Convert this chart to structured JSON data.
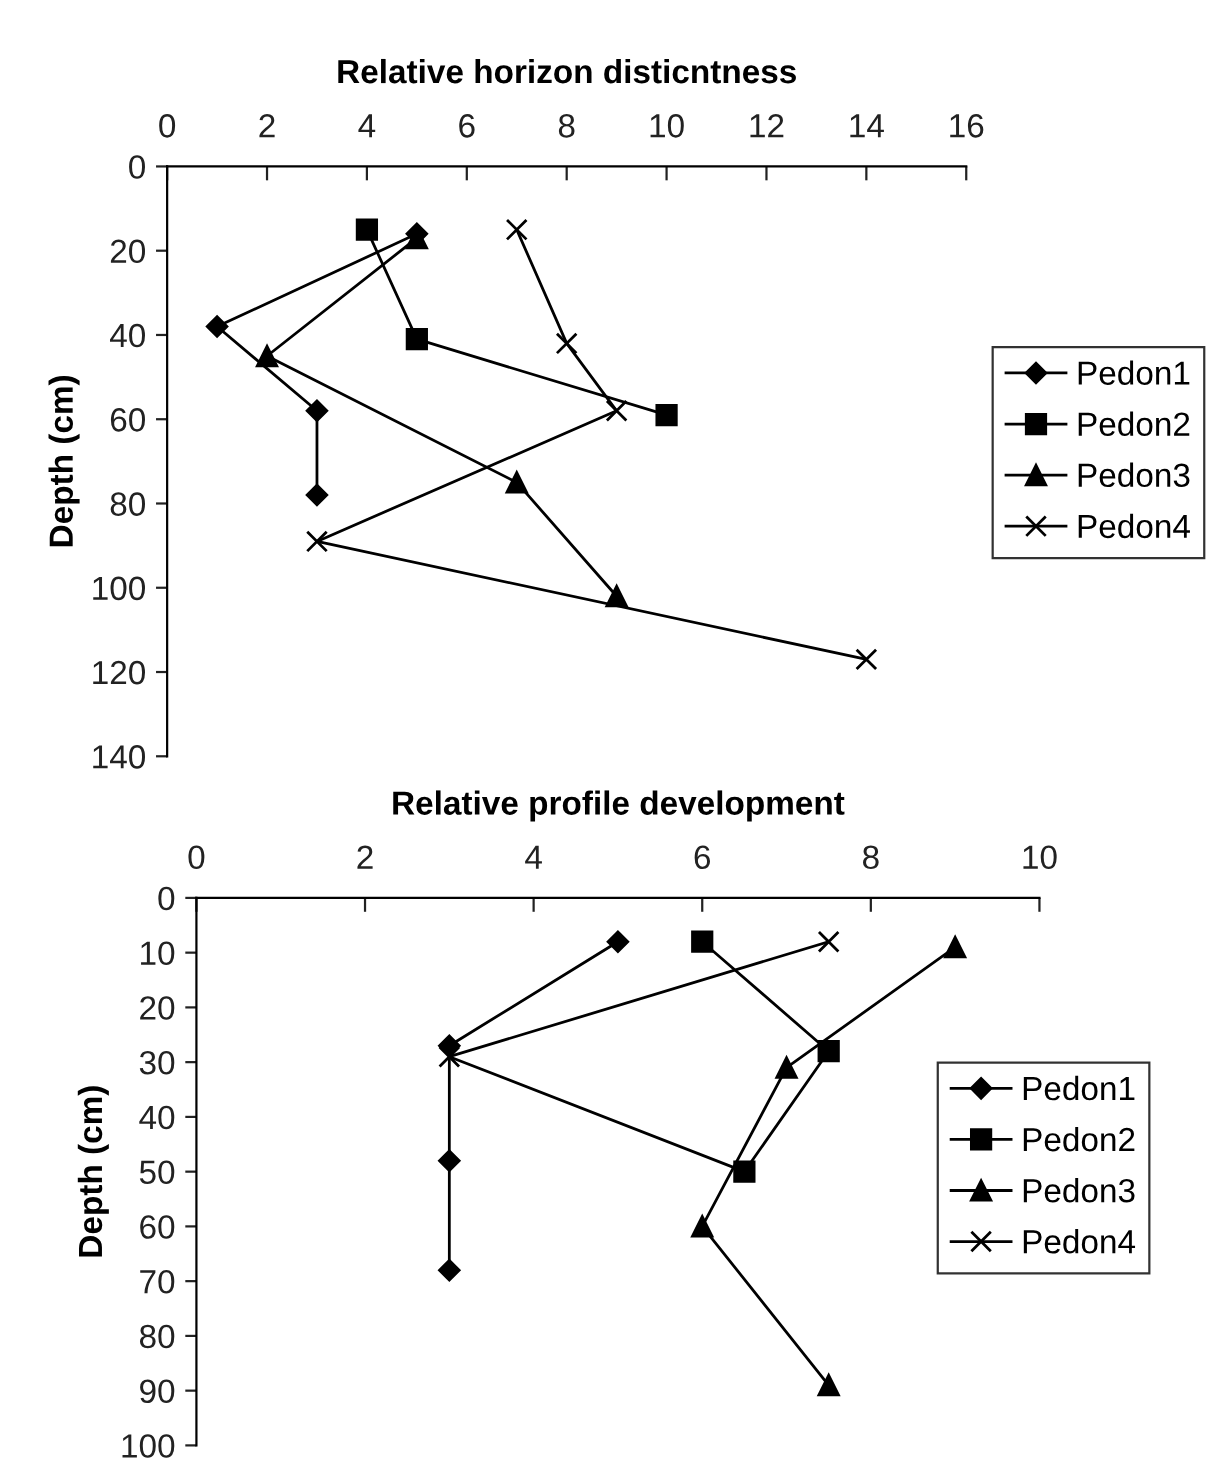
{
  "chart_data": [
    {
      "type": "line",
      "title": "Relative horizon disticntness",
      "ylabel": "Depth (cm)",
      "xlim": [
        0,
        16
      ],
      "xticks": [
        0,
        2,
        4,
        6,
        8,
        10,
        12,
        14,
        16
      ],
      "ylim": [
        140,
        0
      ],
      "yticks": [
        0,
        20,
        40,
        60,
        80,
        100,
        120,
        140
      ],
      "grid": false,
      "legend": "right",
      "line_style": "solid",
      "series": [
        {
          "name": "Pedon1",
          "color": "#000000",
          "marker": "diamond",
          "x": [
            5,
            1,
            3,
            3
          ],
          "values": [
            16,
            38,
            58,
            78
          ]
        },
        {
          "name": "Pedon2",
          "color": "#000000",
          "marker": "square",
          "x": [
            4,
            5,
            10
          ],
          "values": [
            15,
            41,
            59
          ]
        },
        {
          "name": "Pedon3",
          "color": "#000000",
          "marker": "triangle",
          "x": [
            5,
            2,
            7,
            9
          ],
          "values": [
            17,
            45,
            75,
            102
          ]
        },
        {
          "name": "Pedon4",
          "color": "#000000",
          "marker": "cross",
          "x": [
            7,
            8,
            9,
            3,
            14
          ],
          "values": [
            15,
            42,
            58,
            89,
            117
          ]
        }
      ]
    },
    {
      "type": "line",
      "title": "Relative profile development",
      "ylabel": "Depth (cm)",
      "xlim": [
        0,
        10
      ],
      "xticks": [
        0,
        2,
        4,
        6,
        8,
        10
      ],
      "ylim": [
        100,
        0
      ],
      "yticks": [
        0,
        10,
        20,
        30,
        40,
        50,
        60,
        70,
        80,
        90,
        100
      ],
      "grid": false,
      "legend": "right",
      "line_style": "solid",
      "series": [
        {
          "name": "Pedon1",
          "color": "#000000",
          "marker": "diamond",
          "x": [
            5,
            3,
            3,
            3
          ],
          "values": [
            8,
            27,
            48,
            68
          ]
        },
        {
          "name": "Pedon2",
          "color": "#000000",
          "marker": "square",
          "x": [
            6,
            7.5,
            6.5
          ],
          "values": [
            8,
            28,
            50
          ]
        },
        {
          "name": "Pedon3",
          "color": "#000000",
          "marker": "triangle",
          "x": [
            9,
            7,
            6,
            7.5
          ],
          "values": [
            9,
            31,
            60,
            89
          ]
        },
        {
          "name": "Pedon4",
          "color": "#000000",
          "marker": "cross",
          "x": [
            7.5,
            3,
            6.5
          ],
          "values": [
            8,
            29,
            50
          ]
        }
      ]
    }
  ]
}
